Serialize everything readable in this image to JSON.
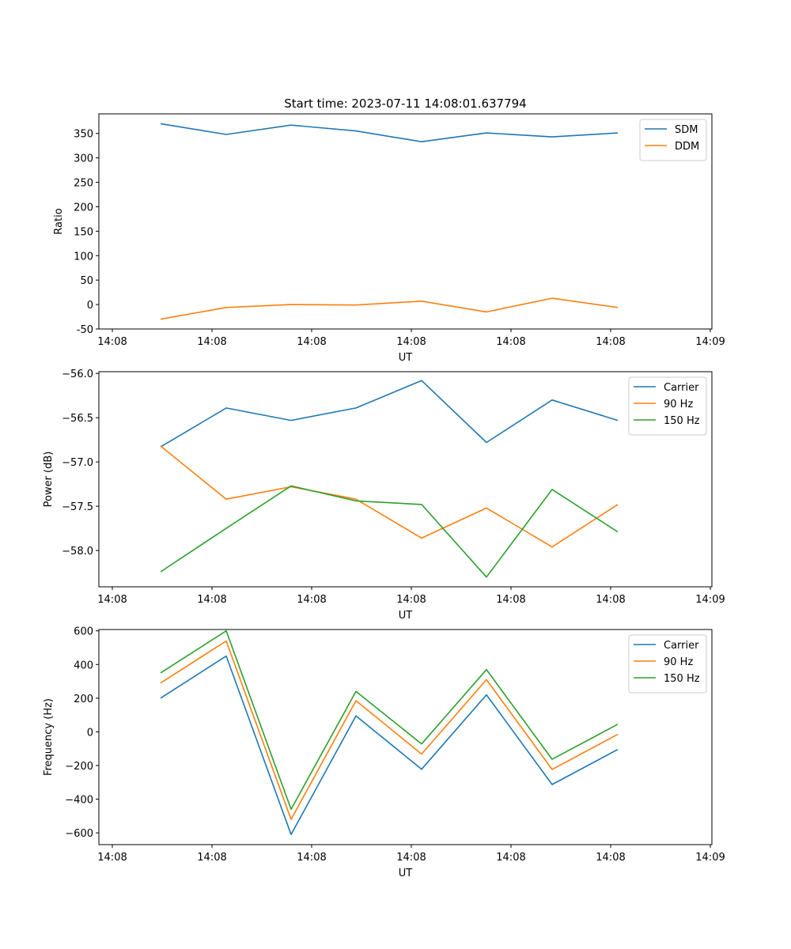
{
  "chart_data": [
    {
      "type": "line",
      "title": "Start time: 2023-07-11 14:08:01.637794",
      "xlabel": "UT",
      "ylabel": "Ratio",
      "x_tick_labels": [
        "14:08",
        "14:08",
        "14:08",
        "14:08",
        "14:08",
        "14:08",
        "14:09"
      ],
      "y_ticks": [
        -50,
        0,
        50,
        100,
        150,
        200,
        250,
        300,
        350
      ],
      "ylim": [
        -50,
        390
      ],
      "legend_loc": "upper right",
      "series": [
        {
          "name": "SDM",
          "color": "#1f77b4",
          "values": [
            370,
            348,
            367,
            355,
            333,
            351,
            343,
            351
          ]
        },
        {
          "name": "DDM",
          "color": "#ff7f0e",
          "values": [
            -30,
            -6,
            0,
            -1,
            7,
            -15,
            13,
            -6
          ]
        }
      ]
    },
    {
      "type": "line",
      "title": "",
      "xlabel": "UT",
      "ylabel": "Power (dB)",
      "x_tick_labels": [
        "14:08",
        "14:08",
        "14:08",
        "14:08",
        "14:08",
        "14:08",
        "14:09"
      ],
      "y_ticks": [
        "−58.0",
        "−57.5",
        "−57.0",
        "−56.5",
        "−56.0"
      ],
      "ylim": [
        -58.41,
        -55.98
      ],
      "legend_loc": "upper right",
      "series": [
        {
          "name": "Carrier",
          "color": "#1f77b4",
          "values": [
            -56.83,
            -56.39,
            -56.53,
            -56.39,
            -56.08,
            -56.78,
            -56.3,
            -56.53
          ]
        },
        {
          "name": "90 Hz",
          "color": "#ff7f0e",
          "values": [
            -56.82,
            -57.42,
            -57.28,
            -57.42,
            -57.86,
            -57.52,
            -57.96,
            -57.48
          ]
        },
        {
          "name": "150 Hz",
          "color": "#2ca02c",
          "values": [
            -58.24,
            -57.75,
            -57.27,
            -57.44,
            -57.48,
            -58.3,
            -57.31,
            -57.79
          ]
        }
      ]
    },
    {
      "type": "line",
      "title": "",
      "xlabel": "UT",
      "ylabel": "Frequency (Hz)",
      "x_tick_labels": [
        "14:08",
        "14:08",
        "14:08",
        "14:08",
        "14:08",
        "14:08",
        "14:09"
      ],
      "y_ticks": [
        "−600",
        "−400",
        "−200",
        "0",
        "200",
        "400",
        "600"
      ],
      "ylim": [
        -670,
        608
      ],
      "legend_loc": "upper right",
      "series": [
        {
          "name": "Carrier",
          "color": "#1f77b4",
          "values": [
            200,
            450,
            -610,
            95,
            -222,
            220,
            -313,
            -105
          ]
        },
        {
          "name": "90 Hz",
          "color": "#ff7f0e",
          "values": [
            290,
            540,
            -520,
            185,
            -132,
            310,
            -223,
            -15
          ]
        },
        {
          "name": "150 Hz",
          "color": "#2ca02c",
          "values": [
            350,
            600,
            -460,
            240,
            -72,
            370,
            -163,
            45
          ]
        }
      ]
    }
  ]
}
